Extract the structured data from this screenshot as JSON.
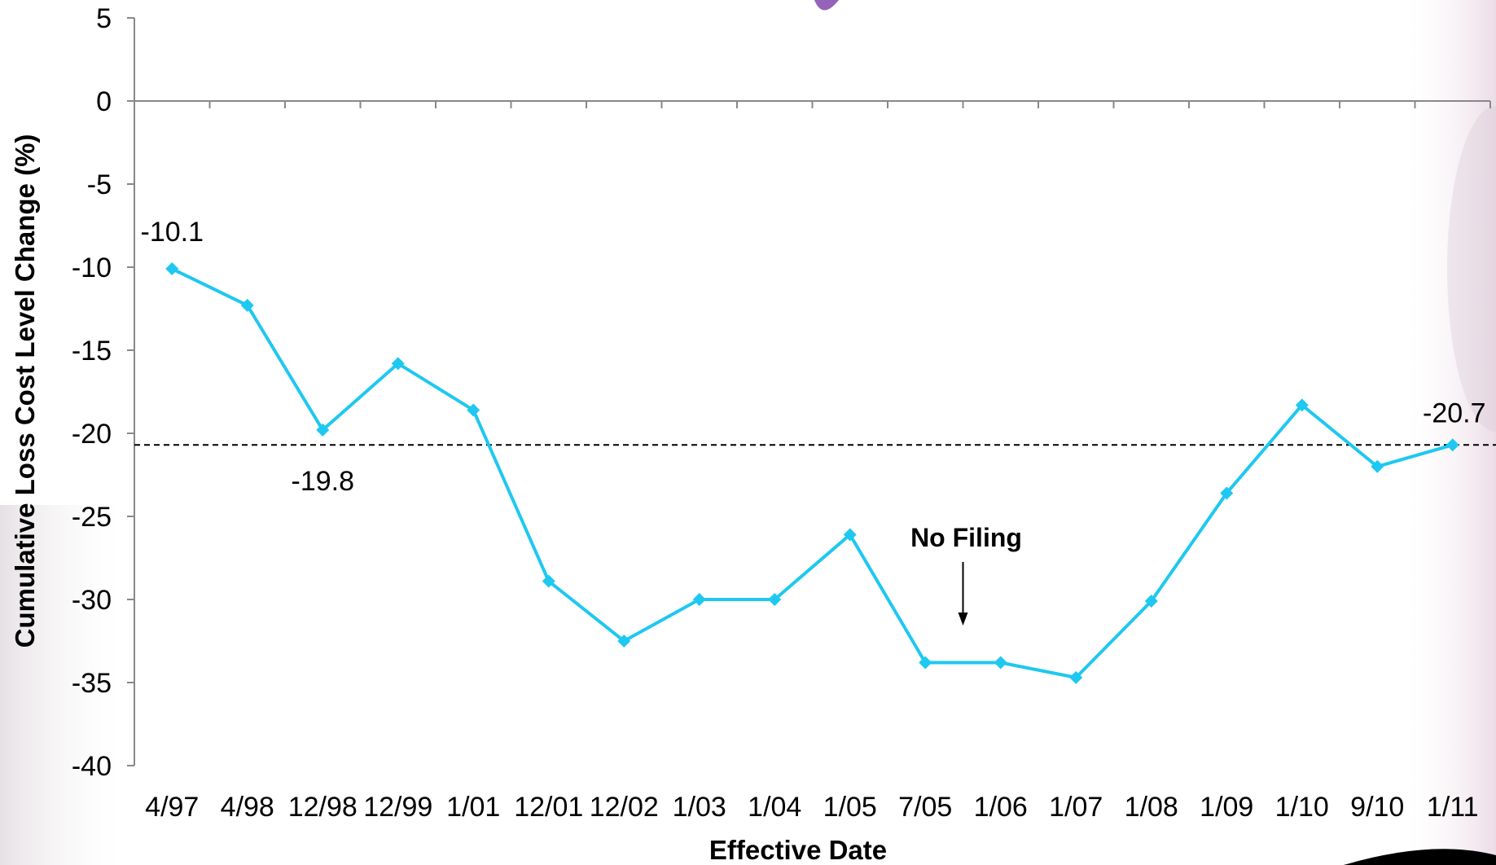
{
  "chart_data": {
    "type": "line",
    "xlabel": "Effective Date",
    "ylabel": "Cumulative Loss Cost Level Change (%)",
    "ylim": [
      -40,
      5
    ],
    "yticks": [
      5,
      0,
      -5,
      -10,
      -15,
      -20,
      -25,
      -30,
      -35,
      -40
    ],
    "grid": false,
    "legend": "none",
    "categories": [
      "4/97",
      "4/98",
      "12/98",
      "12/99",
      "1/01",
      "12/01",
      "12/02",
      "1/03",
      "1/04",
      "1/05",
      "7/05",
      "1/06",
      "1/07",
      "1/08",
      "1/09",
      "1/10",
      "9/10",
      "1/11"
    ],
    "series": [
      {
        "color": "#1ec8f0",
        "values": [
          -10.1,
          -12.3,
          -19.8,
          -15.8,
          -18.6,
          -28.9,
          -32.5,
          -30.0,
          -30.0,
          -26.1,
          -33.8,
          -33.8,
          -34.7,
          -30.1,
          -23.6,
          -18.3,
          -22.0,
          -20.7
        ]
      }
    ],
    "data_labels": [
      {
        "index": 0,
        "text": "-10.1",
        "anchor": "above-left"
      },
      {
        "index": 2,
        "text": "-19.8",
        "anchor": "below"
      },
      {
        "index": 17,
        "text": "-20.7",
        "anchor": "above"
      }
    ],
    "reference_line": {
      "value": -20.7,
      "style": "dashed"
    },
    "annotations": [
      {
        "text": "No Filing",
        "between_index": [
          10,
          11
        ],
        "style": "arrow-down"
      }
    ]
  },
  "colors": {
    "line": "#1ec8f0",
    "axis": "#888888",
    "reference": "#000000",
    "background_accent": "#c89ab8"
  }
}
